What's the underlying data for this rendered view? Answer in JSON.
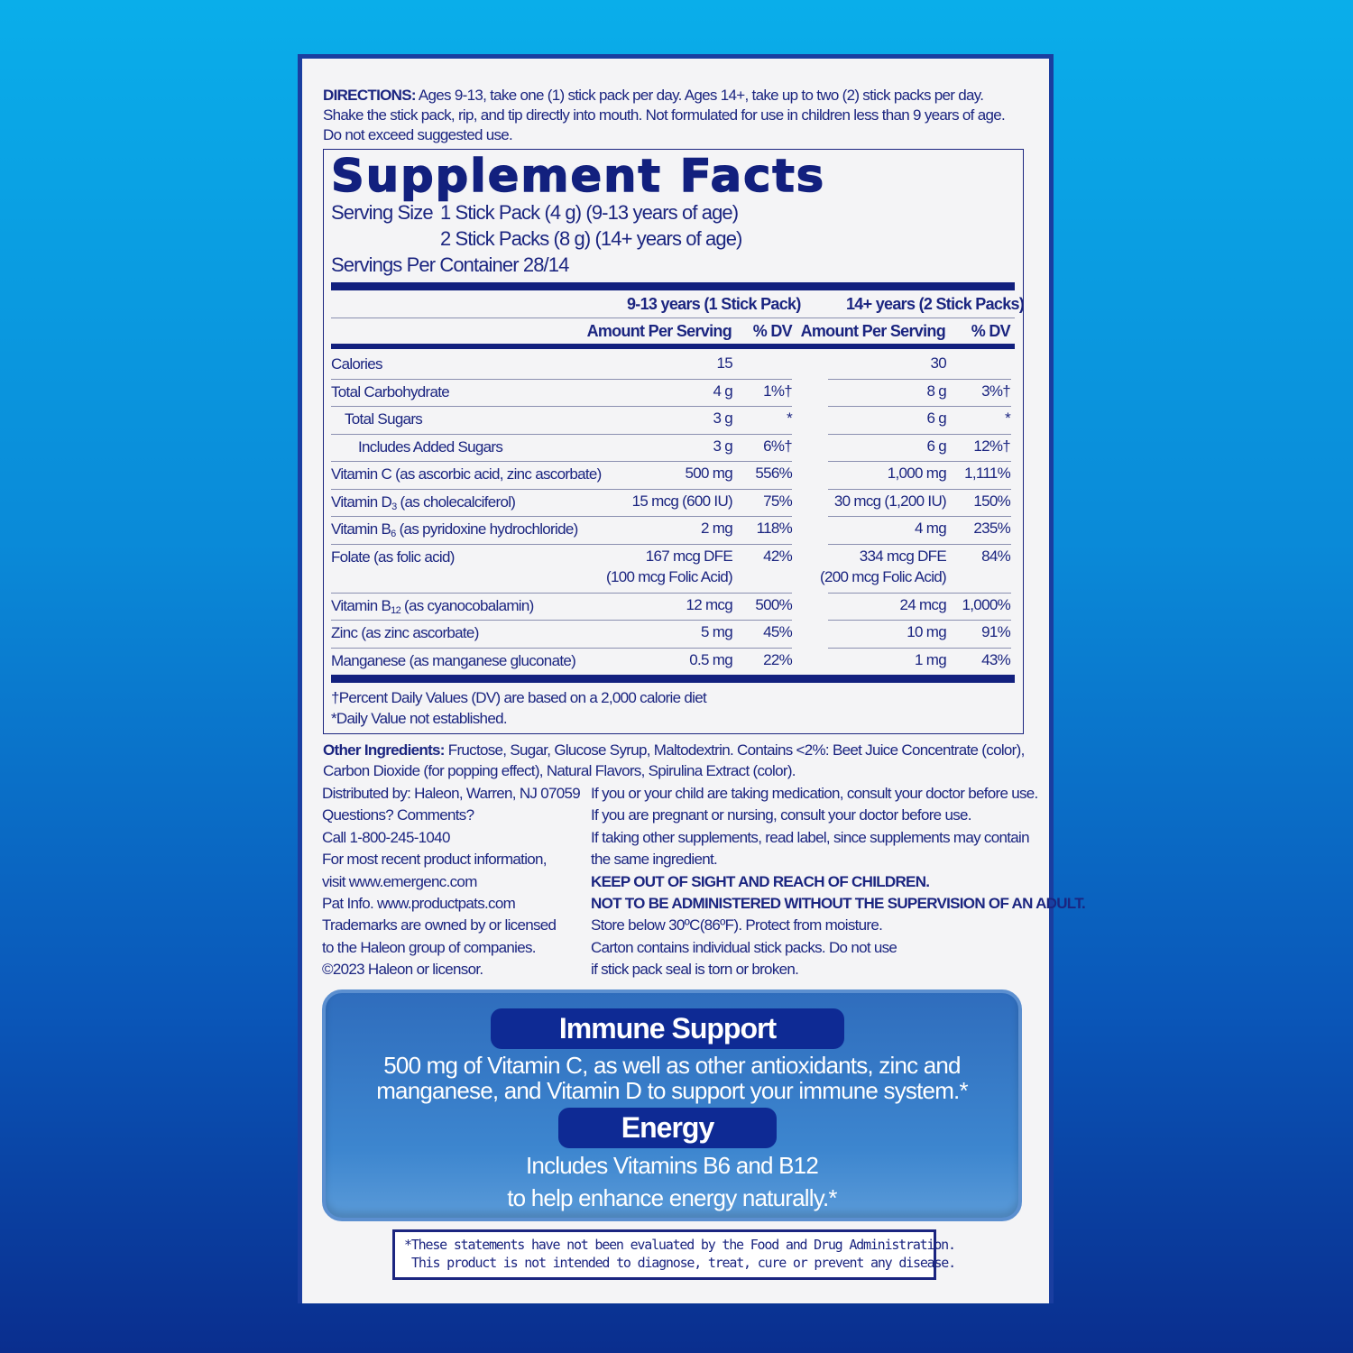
{
  "directions": {
    "label": "DIRECTIONS:",
    "text": " Ages 9-13, take one (1) stick pack per day. Ages 14+, take up to two (2) stick packs per day. Shake the stick pack, rip, and tip directly into mouth. Not formulated for use in children less than 9 years of age. Do not exceed suggested use."
  },
  "facts": {
    "title": "Supplement Facts",
    "serving_size_label": "Serving Size",
    "serving_size_1": "1 Stick Pack (4 g) (9-13 years of age)",
    "serving_size_2": "2 Stick Packs (8 g) (14+ years of age)",
    "servings_per_container": "Servings Per Container 28/14",
    "group1": "9-13 years (1 Stick Pack)",
    "group2": "14+ years (2 Stick Packs)",
    "amount_header": "Amount Per Serving",
    "dv_header": "% DV",
    "rows": [
      {
        "name": "Calories",
        "a1": "15",
        "d1": "",
        "a2": "30",
        "d2": "",
        "indent": 0
      },
      {
        "name": "Total Carbohydrate",
        "a1": "4 g",
        "d1": "1%†",
        "a2": "8 g",
        "d2": "3%†",
        "indent": 0
      },
      {
        "name": "Total Sugars",
        "a1": "3 g",
        "d1": "*",
        "a2": "6 g",
        "d2": "*",
        "indent": 1
      },
      {
        "name": "Includes Added Sugars",
        "a1": "3 g",
        "d1": "6%†",
        "a2": "6 g",
        "d2": "12%†",
        "indent": 2
      },
      {
        "name": "Vitamin C (as ascorbic acid, zinc ascorbate)",
        "a1": "500 mg",
        "d1": "556%",
        "a2": "1,000 mg",
        "d2": "1,111%",
        "indent": 0
      },
      {
        "name_pre": "Vitamin D",
        "name_sub": "3",
        "name_post": " (as cholecalciferol)",
        "a1": "15 mcg (600 IU)",
        "d1": "75%",
        "a2": "30 mcg (1,200 IU)",
        "d2": "150%"
      },
      {
        "name_pre": "Vitamin B",
        "name_sub": "6",
        "name_post": " (as pyridoxine hydrochloride)",
        "a1": "2 mg",
        "d1": "118%",
        "a2": "4 mg",
        "d2": "235%"
      },
      {
        "name": "Folate (as folic acid)",
        "a1": "167 mcg DFE",
        "a1b": "(100 mcg Folic Acid)",
        "d1": "42%",
        "a2": "334 mcg DFE",
        "a2b": "(200 mcg Folic Acid)",
        "d2": "84%"
      },
      {
        "name_pre": "Vitamin B",
        "name_sub": "12",
        "name_post": " (as cyanocobalamin)",
        "a1": "12 mcg",
        "d1": "500%",
        "a2": "24 mcg",
        "d2": "1,000%"
      },
      {
        "name": "Zinc (as zinc ascorbate)",
        "a1": "5 mg",
        "d1": "45%",
        "a2": "10 mg",
        "d2": "91%"
      },
      {
        "name": "Manganese (as manganese gluconate)",
        "a1": "0.5 mg",
        "d1": "22%",
        "a2": "1 mg",
        "d2": "43%"
      }
    ],
    "footnote1": "†Percent Daily Values (DV) are based on a 2,000 calorie diet",
    "footnote2": "*Daily Value not established."
  },
  "other_ingredients": {
    "label": "Other Ingredients:",
    "text": " Fructose, Sugar, Glucose Syrup, Maltodextrin. Contains <2%: Beet Juice Concentrate (color), Carbon Dioxide (for popping effect), Natural Flavors, Spirulina Extract (color)."
  },
  "left_info": [
    "Distributed by: Haleon, Warren, NJ 07059",
    "Questions? Comments?",
    "Call 1-800-245-1040",
    "For most recent product information,",
    "visit www.emergenc.com",
    "Pat Info. www.productpats.com",
    "Trademarks are owned by or licensed",
    "to the Haleon group of companies.",
    "©2023 Haleon or licensor."
  ],
  "right_info": [
    "If you or your child are taking medication, consult your doctor before use.",
    "If you are pregnant or nursing, consult your doctor before use.",
    "If taking other supplements, read label, since supplements may contain",
    "the same ingredient.",
    "KEEP OUT OF SIGHT AND REACH OF CHILDREN.",
    "NOT TO BE ADMINISTERED WITHOUT THE SUPERVISION OF AN ADULT.",
    "Store below 30ºC(86ºF). Protect from moisture.",
    "Carton contains individual stick packs. Do not use",
    "if stick pack seal is torn or broken."
  ],
  "promo": {
    "immune_title": "Immune Support",
    "immune_line1": "500 mg of Vitamin C, as well as other antioxidants, zinc and",
    "immune_line2": "manganese, and Vitamin D to support your immune system.*",
    "energy_title": "Energy",
    "energy_line1": "Includes Vitamins B6 and B12",
    "energy_line2": "to help enhance energy naturally.*"
  },
  "disclaimer": {
    "line1": "*These statements have not been evaluated by the Food and Drug Administration.",
    "line2": "This product is not intended to diagnose, treat, cure or prevent any disease."
  },
  "colors": {
    "navy": "#1b2580",
    "background_top": "#0aaeea",
    "background_bottom": "#0a2e8e",
    "promo_blue": "#3d86cf"
  }
}
